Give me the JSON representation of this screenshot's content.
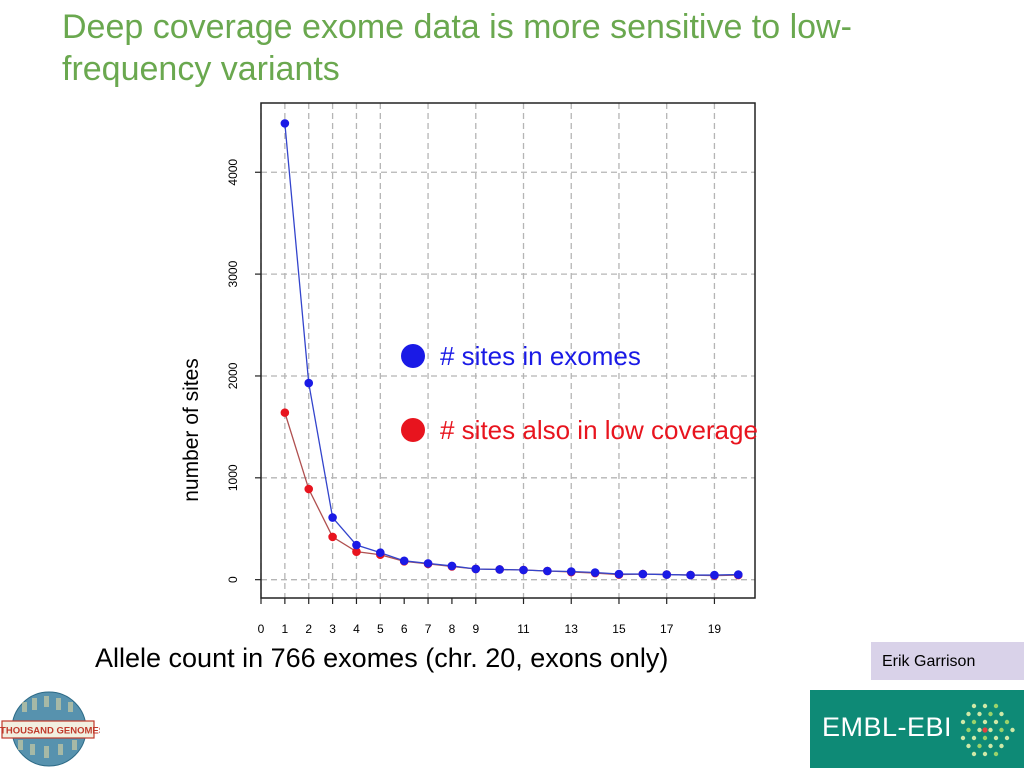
{
  "slide": {
    "title": "Deep coverage exome data is more sensitive to low-frequency variants",
    "author": "Erik Garrison",
    "org": "EMBL-EBI",
    "consortium_logo_text": "A THOUSAND GENOMES"
  },
  "colors": {
    "title": "#6aa84f",
    "exomes": "#1a1ae6",
    "low_coverage": "#e8141e",
    "author_box": "#d9d2e9",
    "embl_green": "#0e8a76"
  },
  "chart_data": {
    "type": "line",
    "xlabel": "Allele count in 766 exomes (chr. 20, exons only)",
    "ylabel": "number of sites",
    "x": [
      1,
      2,
      3,
      4,
      5,
      6,
      7,
      8,
      9,
      10,
      11,
      12,
      13,
      14,
      15,
      16,
      17,
      18,
      19,
      20
    ],
    "x_ticks": [
      "0",
      "1",
      "2",
      "3",
      "4",
      "5",
      "6",
      "7",
      "8",
      "9",
      "11",
      "13",
      "15",
      "17",
      "19"
    ],
    "x_tick_values": [
      0,
      1,
      2,
      3,
      4,
      5,
      6,
      7,
      8,
      9,
      11,
      13,
      15,
      17,
      19
    ],
    "y_ticks": [
      "0",
      "1000",
      "2000",
      "3000",
      "4000"
    ],
    "y_tick_values": [
      0,
      1000,
      2000,
      3000,
      4000
    ],
    "xlim": [
      0,
      20.7
    ],
    "ylim": [
      -180,
      4680
    ],
    "grid": true,
    "grid_x": [
      0,
      1,
      2,
      3,
      4,
      5,
      7,
      9,
      11,
      13,
      15,
      17,
      19
    ],
    "grid_y": [
      0,
      1000,
      2000,
      3000,
      4000
    ],
    "legend_position": "right",
    "series": [
      {
        "name": "# sites in exomes",
        "color": "#1a1ae6",
        "values": [
          4480,
          1930,
          610,
          340,
          265,
          185,
          160,
          135,
          105,
          100,
          95,
          85,
          80,
          70,
          55,
          55,
          50,
          45,
          45,
          50
        ]
      },
      {
        "name": "# sites also in low coverage",
        "color": "#e8141e",
        "values": [
          1640,
          890,
          420,
          275,
          245,
          180,
          155,
          130,
          105,
          100,
          95,
          85,
          75,
          65,
          50,
          55,
          50,
          45,
          40,
          45
        ]
      }
    ]
  }
}
